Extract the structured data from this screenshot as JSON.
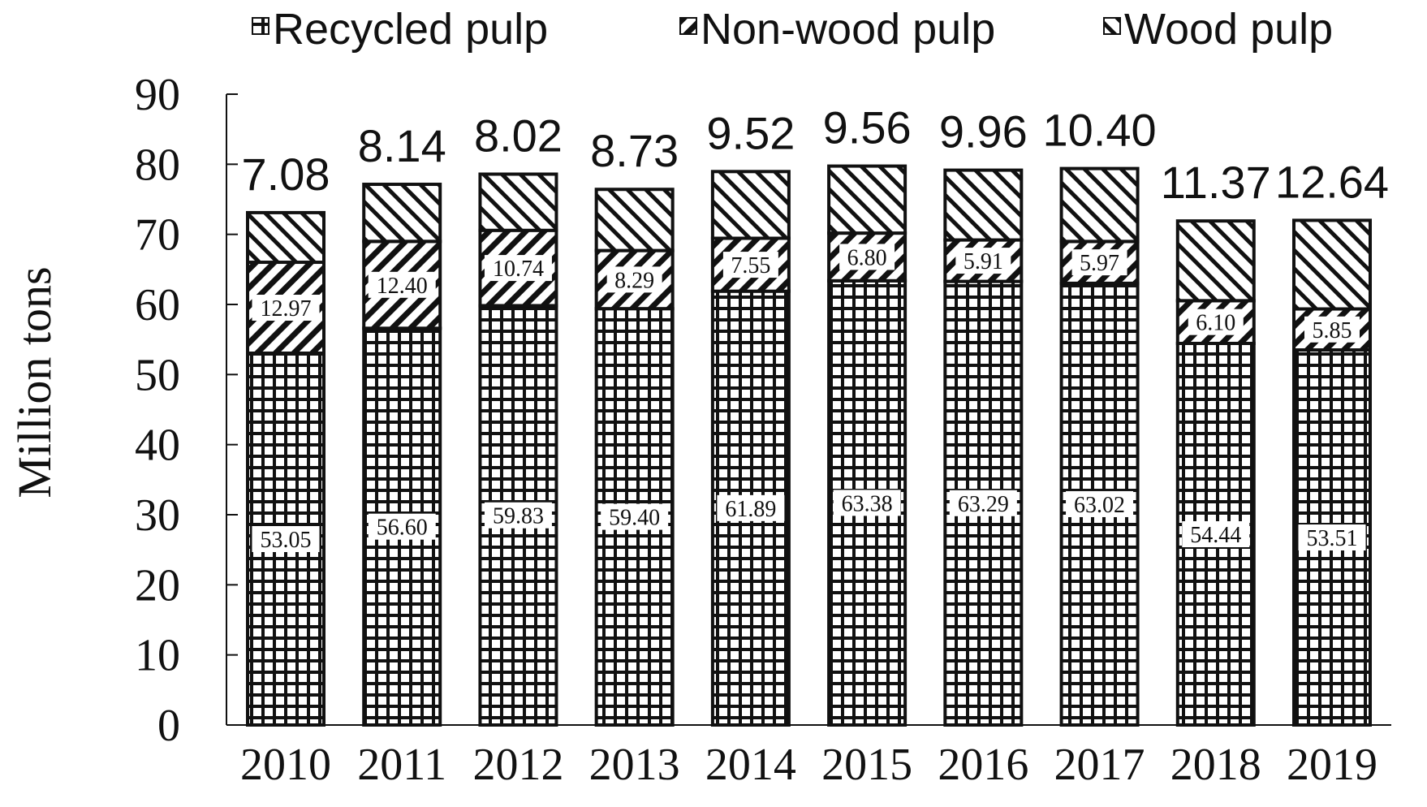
{
  "chart_data": {
    "type": "bar",
    "stacked": true,
    "categories": [
      "2010",
      "2011",
      "2012",
      "2013",
      "2014",
      "2015",
      "2016",
      "2017",
      "2018",
      "2019"
    ],
    "series": [
      {
        "name": "Recycled pulp",
        "pattern": "grid",
        "values": [
          53.05,
          56.6,
          59.83,
          59.4,
          61.89,
          63.38,
          63.29,
          63.02,
          54.44,
          53.51
        ]
      },
      {
        "name": "Non-wood pulp",
        "pattern": "backslash-hatch",
        "values": [
          12.97,
          12.4,
          10.74,
          8.29,
          7.55,
          6.8,
          5.91,
          5.97,
          6.1,
          5.85
        ]
      },
      {
        "name": "Wood pulp",
        "pattern": "slash-hatch",
        "values": [
          7.08,
          8.14,
          8.02,
          8.73,
          9.52,
          9.56,
          9.96,
          10.4,
          11.37,
          12.64
        ]
      }
    ],
    "data_labels": {
      "Recycled pulp": [
        "53.05",
        "56.60",
        "59.83",
        "59.40",
        "61.89",
        "63.38",
        "63.29",
        "63.02",
        "54.44",
        "53.51"
      ],
      "Non-wood pulp": [
        "12.97",
        "12.40",
        "10.74",
        "8.29",
        "7.55",
        "6.80",
        "5.91",
        "5.97",
        "6.10",
        "5.85"
      ],
      "Wood pulp": [
        "7.08",
        "8.14",
        "8.02",
        "8.73",
        "9.52",
        "9.56",
        "9.96",
        "10.40",
        "11.37",
        "12.64"
      ]
    },
    "ylabel": "Million tons",
    "xlabel": "",
    "ylim": [
      0,
      90
    ],
    "yticks": [
      "0",
      "10",
      "20",
      "30",
      "40",
      "50",
      "60",
      "70",
      "80",
      "90"
    ],
    "grid": false,
    "legend": "top",
    "colors": {
      "ink": "#111111",
      "background": "#ffffff"
    }
  }
}
